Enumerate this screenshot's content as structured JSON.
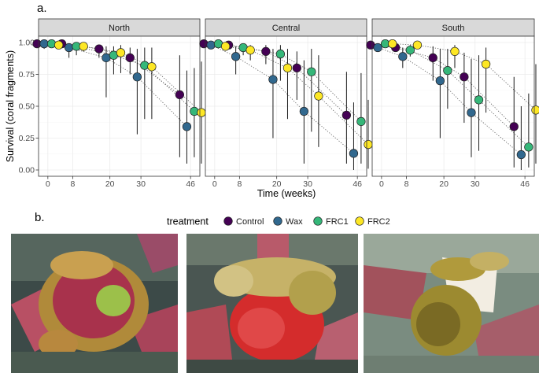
{
  "panel_labels": {
    "a": "a.",
    "b": "b."
  },
  "chart_data": {
    "type": "scatter",
    "facets": [
      "North",
      "Central",
      "South"
    ],
    "ylabel": "Survival (coral fragments)",
    "xlabel": "Time (weeks)",
    "x_ticks": [
      0,
      8,
      20,
      30,
      46
    ],
    "y_ticks": [
      0.0,
      0.25,
      0.5,
      0.75,
      1.0
    ],
    "y_tick_labels": [
      "0.00",
      "0.25",
      "0.50",
      "0.75",
      "1.00"
    ],
    "ylim": [
      0,
      1
    ],
    "xlim": [
      -3,
      49
    ],
    "grid": true,
    "legend": {
      "title": "treatment",
      "position": "bottom"
    },
    "series": [
      {
        "name": "Control",
        "color": "#440154",
        "points": {
          "North": [
            [
              0,
              0.99,
              0.99,
              0.99
            ],
            [
              8,
              0.99,
              0.99,
              0.99
            ],
            [
              20,
              0.95,
              0.88,
              0.98
            ],
            [
              30,
              0.88,
              0.75,
              0.96
            ],
            [
              46,
              0.59,
              0.1,
              0.9
            ]
          ],
          "Central": [
            [
              0,
              0.99,
              0.99,
              0.99
            ],
            [
              8,
              0.98,
              0.98,
              0.98
            ],
            [
              20,
              0.93,
              0.83,
              0.98
            ],
            [
              30,
              0.8,
              0.55,
              0.93
            ],
            [
              46,
              0.43,
              0.05,
              0.77
            ]
          ],
          "South": [
            [
              0,
              0.98,
              0.98,
              0.98
            ],
            [
              8,
              0.96,
              0.96,
              0.96
            ],
            [
              20,
              0.88,
              0.7,
              0.97
            ],
            [
              30,
              0.73,
              0.37,
              0.92
            ],
            [
              46,
              0.34,
              0.02,
              0.73
            ]
          ]
        }
      },
      {
        "name": "Wax",
        "color": "#31688e",
        "points": {
          "North": [
            [
              0,
              0.99,
              0.95,
              1.0
            ],
            [
              8,
              0.96,
              0.88,
              0.99
            ],
            [
              20,
              0.88,
              0.57,
              0.97
            ],
            [
              30,
              0.73,
              0.28,
              0.95
            ],
            [
              46,
              0.34,
              0.05,
              0.78
            ]
          ],
          "Central": [
            [
              0,
              0.98,
              0.95,
              0.99
            ],
            [
              8,
              0.89,
              0.75,
              0.97
            ],
            [
              20,
              0.71,
              0.25,
              0.95
            ],
            [
              30,
              0.46,
              0.05,
              0.86
            ],
            [
              46,
              0.13,
              0.0,
              0.53
            ]
          ],
          "South": [
            [
              0,
              0.96,
              0.93,
              0.98
            ],
            [
              8,
              0.89,
              0.8,
              0.96
            ],
            [
              20,
              0.7,
              0.25,
              0.95
            ],
            [
              30,
              0.45,
              0.1,
              0.87
            ],
            [
              46,
              0.12,
              0.0,
              0.5
            ]
          ]
        }
      },
      {
        "name": "FRC1",
        "color": "#35b779",
        "points": {
          "North": [
            [
              0,
              0.99,
              0.99,
              0.99
            ],
            [
              8,
              0.97,
              0.9,
              0.99
            ],
            [
              20,
              0.9,
              0.75,
              0.97
            ],
            [
              30,
              0.82,
              0.4,
              0.96
            ],
            [
              46,
              0.46,
              0.1,
              0.8
            ]
          ],
          "Central": [
            [
              0,
              0.99,
              0.99,
              0.99
            ],
            [
              8,
              0.96,
              0.9,
              0.99
            ],
            [
              20,
              0.91,
              0.7,
              0.98
            ],
            [
              30,
              0.77,
              0.3,
              0.95
            ],
            [
              46,
              0.38,
              0.05,
              0.76
            ]
          ],
          "South": [
            [
              0,
              0.99,
              0.99,
              0.99
            ],
            [
              8,
              0.94,
              0.89,
              0.98
            ],
            [
              20,
              0.78,
              0.48,
              0.95
            ],
            [
              30,
              0.55,
              0.15,
              0.9
            ],
            [
              46,
              0.18,
              0.02,
              0.6
            ]
          ]
        }
      },
      {
        "name": "FRC2",
        "color": "#fde725",
        "points": {
          "North": [
            [
              0,
              0.98,
              0.95,
              1.0
            ],
            [
              8,
              0.97,
              0.93,
              0.99
            ],
            [
              20,
              0.92,
              0.76,
              0.98
            ],
            [
              30,
              0.81,
              0.4,
              0.96
            ],
            [
              46,
              0.45,
              0.05,
              0.85
            ]
          ],
          "Central": [
            [
              0,
              0.97,
              0.96,
              0.98
            ],
            [
              8,
              0.94,
              0.86,
              0.98
            ],
            [
              20,
              0.8,
              0.4,
              0.95
            ],
            [
              30,
              0.58,
              0.18,
              0.9
            ],
            [
              46,
              0.2,
              0.01,
              0.55
            ]
          ],
          "South": [
            [
              0,
              0.99,
              0.98,
              0.99
            ],
            [
              8,
              0.98,
              0.96,
              0.99
            ],
            [
              20,
              0.93,
              0.8,
              0.98
            ],
            [
              30,
              0.83,
              0.45,
              0.96
            ],
            [
              46,
              0.47,
              0.05,
              0.83
            ]
          ]
        }
      }
    ]
  },
  "photos": [
    {
      "name": "photo-control-fragment"
    },
    {
      "name": "photo-frc-fragment"
    },
    {
      "name": "photo-wax-fragment"
    }
  ]
}
